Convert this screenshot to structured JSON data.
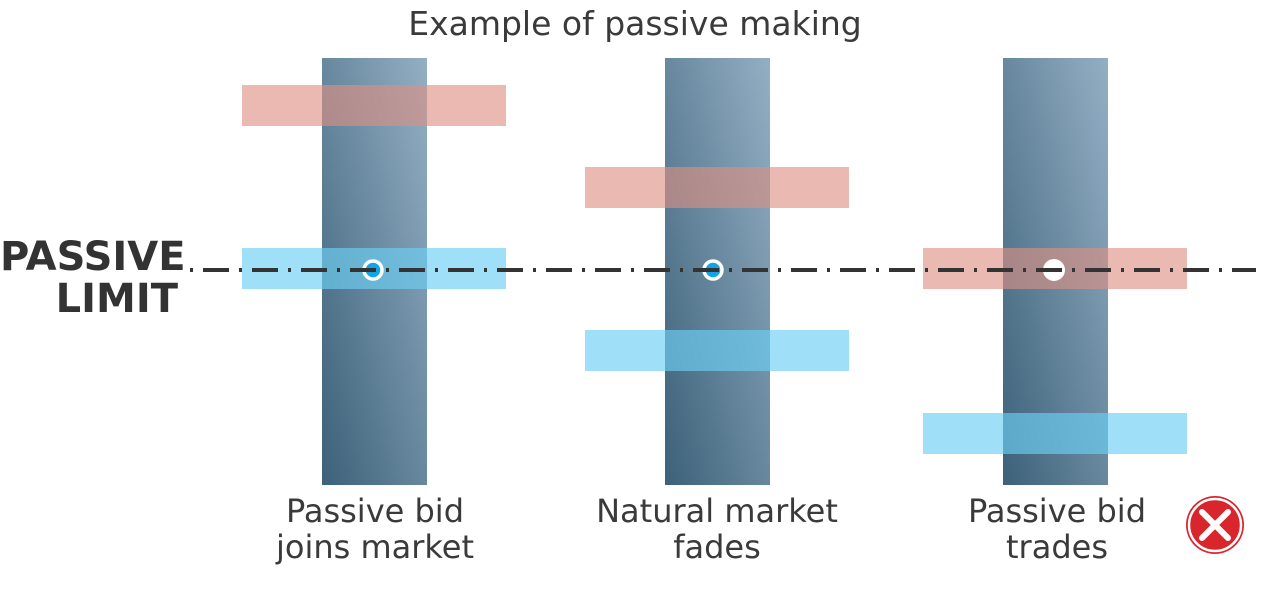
{
  "title": "Example of passive making",
  "passive_limit": {
    "line1": "PASSIVE",
    "line2": "LIMIT"
  },
  "colors": {
    "column_top": "#94afc4",
    "column_bottom": "#3c6179",
    "ask_band": "#e8b4ac",
    "bid_band": "#9bdff8",
    "order_marker": "#12a4e8",
    "dashed_line": "#333333",
    "fail_badge": "#d9252c"
  },
  "scenarios": [
    {
      "label_line1": "Passive bid",
      "label_line2": "joins market",
      "order_on_limit": "bid",
      "outcome": ""
    },
    {
      "label_line1": "Natural market",
      "label_line2": "fades",
      "order_on_limit": "bid",
      "outcome": ""
    },
    {
      "label_line1": "Passive bid",
      "label_line2": "trades",
      "order_on_limit": "ask",
      "outcome": "fail"
    }
  ],
  "icons": {
    "fail": "close-x-icon"
  }
}
